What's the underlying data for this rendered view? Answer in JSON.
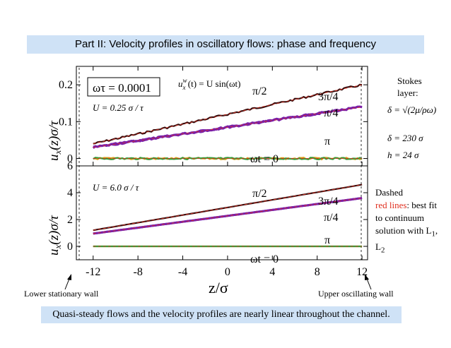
{
  "header": {
    "title": "Part II: Velocity profiles in oscillatory flows: phase and frequency"
  },
  "footer": {
    "note": "Quasi-steady flows and the velocity profiles are nearly linear throughout the channel."
  },
  "walls": {
    "lower": "Lower stationary wall",
    "upper": "Upper oscillating wall"
  },
  "sidebar": {
    "stokes_label": "Stokes layer:",
    "delta_formula": "δ = √(2μ/ρω)",
    "delta_value": "δ = 230 σ",
    "h_value": "h = 24 σ",
    "dashed_note_1": "Dashed",
    "dashed_note_red": "red lines",
    "dashed_note_2": ": best fit to continuum solution with L",
    "sub1": "1",
    "sep": ", L",
    "sub2": "2"
  },
  "top_panel": {
    "omega_tau": "ωτ = 0.0001",
    "wall_velocity": "u_x^w(t) = U sin(ωt)",
    "amplitude": "U = 0.25 σ / τ"
  },
  "bottom_panel": {
    "amplitude": "U = 6.0 σ / τ"
  },
  "colors": {
    "pi_half": "#3a1010",
    "three_pi_quarter": "#7a1fa8",
    "pi": "#d99a1a",
    "zero": "#3a9a3a",
    "fit": "#e03020"
  },
  "chart_data": [
    {
      "type": "line",
      "panel": "top",
      "xlabel": "",
      "ylabel": "u_x(z)σ/τ",
      "xlim": [
        -13.5,
        12.5
      ],
      "ylim": [
        -0.02,
        0.25
      ],
      "yticks": [
        "0",
        "0.1",
        "0.2"
      ],
      "grid": false,
      "series": [
        {
          "name": "π/2",
          "x": [
            -12,
            12
          ],
          "y": [
            0.04,
            0.2
          ]
        },
        {
          "name": "3π/4",
          "x": [
            -12,
            12
          ],
          "y": [
            0.03,
            0.14
          ]
        },
        {
          "name": "π/4",
          "x": [
            -12,
            12
          ],
          "y": [
            0.03,
            0.14
          ]
        },
        {
          "name": "π",
          "x": [
            -12,
            12
          ],
          "y": [
            0.0,
            0.0
          ]
        },
        {
          "name": "ωt = 0",
          "x": [
            -12,
            12
          ],
          "y": [
            0.0,
            0.0
          ]
        }
      ]
    },
    {
      "type": "line",
      "panel": "bottom",
      "xlabel": "z/σ",
      "ylabel": "u_x(z)σ/τ",
      "xlim": [
        -13.5,
        12.5
      ],
      "ylim": [
        -1,
        6
      ],
      "xticks": [
        "-12",
        "-8",
        "-4",
        "0",
        "4",
        "8",
        "12"
      ],
      "yticks": [
        "0",
        "2",
        "4",
        "6"
      ],
      "grid": false,
      "series": [
        {
          "name": "π/2",
          "x": [
            -12,
            12
          ],
          "y": [
            1.2,
            4.6
          ]
        },
        {
          "name": "3π/4",
          "x": [
            -12,
            12
          ],
          "y": [
            0.95,
            3.6
          ]
        },
        {
          "name": "π/4",
          "x": [
            -12,
            12
          ],
          "y": [
            0.95,
            3.6
          ]
        },
        {
          "name": "π",
          "x": [
            -12,
            12
          ],
          "y": [
            0.0,
            0.0
          ]
        },
        {
          "name": "ωt = 0",
          "x": [
            -12,
            12
          ],
          "y": [
            0.0,
            0.0
          ]
        }
      ]
    }
  ]
}
